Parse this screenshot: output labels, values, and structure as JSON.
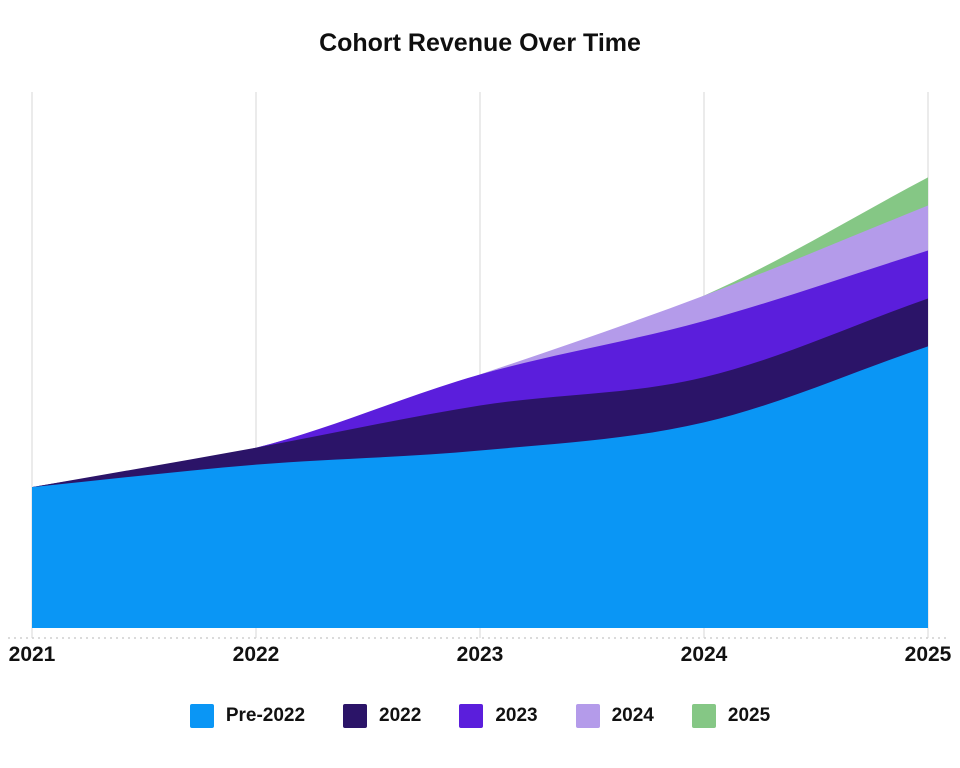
{
  "chart_data": {
    "type": "area",
    "stacked": true,
    "title": "Cohort Revenue Over Time",
    "x_labels": [
      "2021",
      "2022",
      "2023",
      "2024",
      "2025"
    ],
    "series": [
      {
        "name": "Pre-2022",
        "color": "#0A96F5",
        "values": [
          50,
          58,
          63,
          73,
          100
        ]
      },
      {
        "name": "2022",
        "color": "#2B1468",
        "values": [
          0,
          6,
          16,
          16,
          17
        ]
      },
      {
        "name": "2023",
        "color": "#5B1EDC",
        "values": [
          0,
          0,
          11,
          20,
          17
        ]
      },
      {
        "name": "2024",
        "color": "#B49BEA",
        "values": [
          0,
          0,
          0,
          9,
          16
        ]
      },
      {
        "name": "2025",
        "color": "#85C785",
        "values": [
          0,
          0,
          0,
          0,
          10
        ]
      }
    ],
    "ylim": [
      0,
      191
    ],
    "units": "relative revenue (y-axis unlabeled)",
    "xlabel": "",
    "ylabel": "",
    "grid": "vertical-only",
    "grid_color": "#EBEBEB",
    "baseline_color": "#CFCFCF",
    "legend_position": "bottom",
    "text_color": "#111111"
  }
}
